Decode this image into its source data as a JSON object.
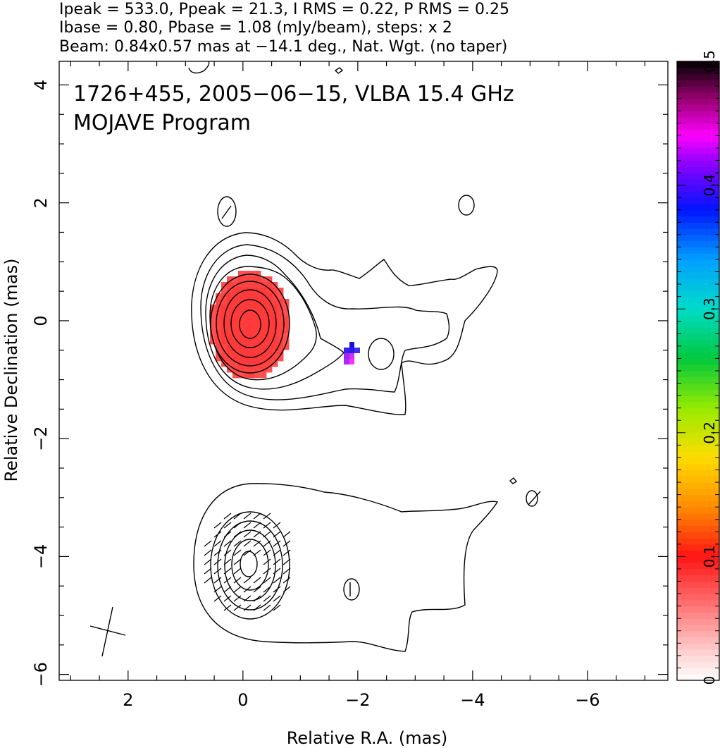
{
  "header": {
    "line1": "Ipeak = 533.0, Ppeak = 21.3, I RMS = 0.22, P RMS = 0.25",
    "line2": "Ibase = 0.80, Pbase = 1.08 (mJy/beam), steps: x 2",
    "line3": "Beam: 0.84x0.57 mas at −14.1 deg., Nat. Wgt. (no taper)"
  },
  "chart_data": {
    "type": "heatmap",
    "title_line1": "1726+455, 2005−06−15, VLBA 15.4 GHz",
    "title_line2": "MOJAVE Program",
    "xlabel": "Relative R.A. (mas)",
    "ylabel": "Relative Declination (mas)",
    "xlim": [
      3.2,
      -7.4
    ],
    "ylim": [
      -6.1,
      4.4
    ],
    "x_ticks": [
      2,
      0,
      -2,
      -4,
      -6
    ],
    "y_ticks": [
      -6,
      -4,
      -2,
      0,
      2,
      4
    ],
    "x_tick_labels": [
      "2",
      "0",
      "−2",
      "−4",
      "−6"
    ],
    "y_tick_labels": [
      "−6",
      "−4",
      "−2",
      "0",
      "2",
      "4"
    ],
    "colorbar": {
      "range": [
        0,
        0.5
      ],
      "ticks": [
        0,
        0.1,
        0.2,
        0.3,
        0.4,
        0.5
      ],
      "tick_labels": [
        "0",
        "0.1",
        "0.2",
        "0.3",
        "0.4",
        "0.5"
      ]
    },
    "stokes_i_contours_center": [
      0.0,
      -0.05
    ],
    "polarization_core_fraction": 0.06,
    "polarization_knot": {
      "x": -1.8,
      "y": -0.55,
      "fraction": 0.43
    },
    "beam": {
      "major_mas": 0.84,
      "minor_mas": 0.57,
      "pa_deg": -14.1,
      "x": 2.2,
      "y": -5.25
    },
    "convolved_beam_center": [
      -0.05,
      -4.1
    ],
    "colors": {
      "core": "#ff3a3a",
      "knot_high": "#3020ff",
      "knot_mid": "#a020ff",
      "knot_low": "#ff30ff"
    }
  }
}
